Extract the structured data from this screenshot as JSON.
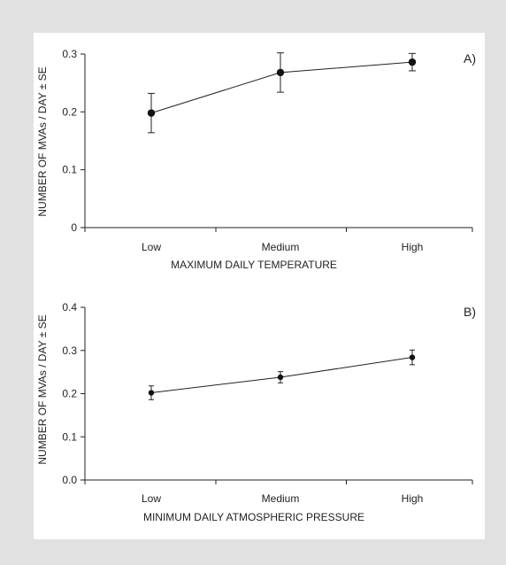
{
  "chart_data": [
    {
      "type": "line",
      "panel_label": "A)",
      "categories": [
        "Low",
        "Medium",
        "High"
      ],
      "series": [
        {
          "values": [
            0.198,
            0.268,
            0.286
          ],
          "error": [
            0.034,
            0.034,
            0.015
          ]
        }
      ],
      "xlabel": "MAXIMUM DAILY TEMPERATURE",
      "ylabel": "NUMBER OF MVAs / DAY ± SE",
      "ylim": [
        0,
        0.3
      ],
      "yticks": [
        "0",
        "0.1",
        "0.2",
        "0.3"
      ],
      "ytick_values": [
        0,
        0.1,
        0.2,
        0.3
      ],
      "marker_size": "large",
      "grid": false
    },
    {
      "type": "line",
      "panel_label": "B)",
      "categories": [
        "Low",
        "Medium",
        "High"
      ],
      "series": [
        {
          "values": [
            0.202,
            0.238,
            0.284
          ],
          "error": [
            0.016,
            0.013,
            0.017
          ]
        }
      ],
      "xlabel": "MINIMUM DAILY ATMOSPHERIC PRESSURE",
      "ylabel": "NUMBER OF MVAs / DAY ± SE",
      "ylim": [
        0,
        0.4
      ],
      "yticks": [
        "0.0",
        "0.1",
        "0.2",
        "0.3",
        "0.4"
      ],
      "ytick_values": [
        0,
        0.1,
        0.2,
        0.3,
        0.4
      ],
      "marker_size": "small",
      "grid": false
    }
  ],
  "colors": {
    "background": "#e1e1e1",
    "panel": "#ffffff",
    "ink": "#222222"
  }
}
